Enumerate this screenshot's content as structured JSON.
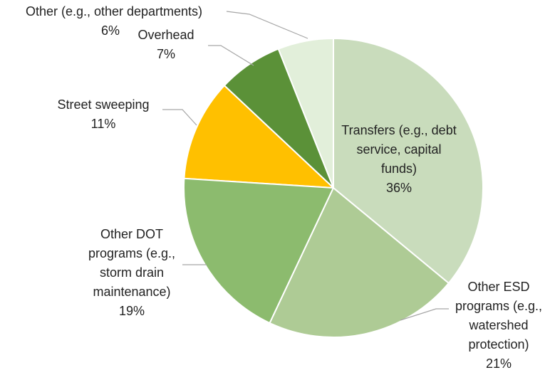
{
  "chart_data": {
    "type": "pie",
    "categories": [
      "Transfers (e.g., debt service, capital funds)",
      "Other ESD programs (e.g., watershed protection)",
      "Other DOT programs (e.g., storm drain maintenance)",
      "Street sweeping",
      "Overhead",
      "Other (e.g., other departments)"
    ],
    "values": [
      36,
      21,
      19,
      11,
      7,
      6
    ],
    "value_labels": [
      "36%",
      "21%",
      "19%",
      "11%",
      "7%",
      "6%"
    ],
    "colors": [
      "#c9dcbc",
      "#aecb95",
      "#8cbb6e",
      "#ffc000",
      "#5b9138",
      "#e2efda"
    ]
  }
}
